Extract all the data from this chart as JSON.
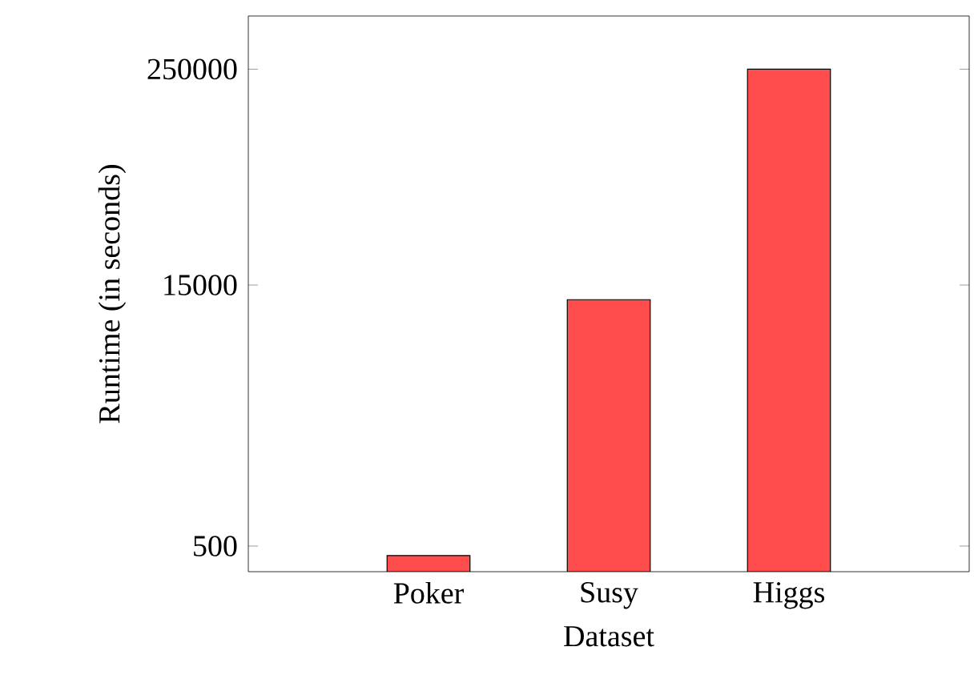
{
  "chart_data": {
    "type": "bar",
    "xlabel": "Dataset",
    "ylabel": "Runtime (in seconds)",
    "categories": [
      "Poker",
      "Susy",
      "Higgs"
    ],
    "values": [
      442,
      12400,
      250000
    ],
    "color": "#ff4c4c",
    "log": true,
    "ylim": [
      358,
      500000
    ],
    "yticks": [
      500,
      15000,
      250000
    ],
    "grid": false
  }
}
